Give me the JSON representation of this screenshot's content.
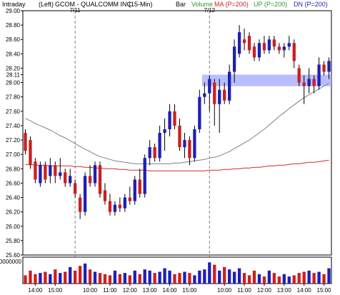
{
  "header": {
    "period": "Intraday",
    "position": "(Left)",
    "symbol": "GCOM - QUALCOMM INC",
    "interval": "(15-Min)",
    "bar_label": "Bar",
    "volume_label": "Volume",
    "ma_label": "MA (P=200)",
    "up_label": "UP (P=200)",
    "dn_label": "DN (P=200)"
  },
  "colors": {
    "up_candle": "#1f1fb4",
    "down_candle": "#cc1f1f",
    "ma_line": "#d42a2a",
    "band_line": "#808080",
    "resistance_zone": "#a0a8ff",
    "volume_label_color": "#2a9a2a",
    "up_label_color": "#2a9a2a",
    "dn_label_color": "#1f1fb4",
    "ma_label_color": "#cc1f1f",
    "day_divider": "#808080"
  },
  "volume_axis_label": "0000000",
  "chart_data": {
    "type": "candlestick",
    "ylim": [
      25.6,
      29.0
    ],
    "y_ticks": [
      "25.60",
      "25.80",
      "26.00",
      "26.20",
      "26.40",
      "26.60",
      "26.80",
      "27.00",
      "27.20",
      "27.40",
      "27.60",
      "27.80",
      "28.00",
      "28.11",
      "28.20",
      "28.40",
      "28.60",
      "28.80",
      "29.00"
    ],
    "x_tick_labels": [
      {
        "label": "14:00",
        "bar": 2
      },
      {
        "label": "15:00",
        "bar": 6
      },
      {
        "label": "10:00",
        "bar": 13
      },
      {
        "label": "11:00",
        "bar": 17
      },
      {
        "label": "12:00",
        "bar": 21
      },
      {
        "label": "13:00",
        "bar": 25
      },
      {
        "label": "14:00",
        "bar": 29
      },
      {
        "label": "15:00",
        "bar": 33
      },
      {
        "label": "10:00",
        "bar": 40
      },
      {
        "label": "11:00",
        "bar": 44
      },
      {
        "label": "12:00",
        "bar": 48
      },
      {
        "label": "13:00",
        "bar": 52
      },
      {
        "label": "14:00",
        "bar": 56
      },
      {
        "label": "15:00",
        "bar": 60
      }
    ],
    "date_markers": [
      {
        "label": "7/11",
        "at_bar": 10.5
      },
      {
        "label": "7/12",
        "at_bar": 37.5
      }
    ],
    "resistance_zone": [
      27.95,
      28.11
    ],
    "bars": [
      {
        "o": 27.3,
        "h": 27.35,
        "l": 27.0,
        "c": 27.05
      },
      {
        "o": 27.2,
        "h": 27.25,
        "l": 26.8,
        "c": 26.85
      },
      {
        "o": 26.9,
        "h": 26.95,
        "l": 26.6,
        "c": 26.65
      },
      {
        "o": 26.6,
        "h": 26.9,
        "l": 26.55,
        "c": 26.85
      },
      {
        "o": 26.85,
        "h": 26.9,
        "l": 26.6,
        "c": 26.65
      },
      {
        "o": 26.7,
        "h": 26.95,
        "l": 26.6,
        "c": 26.85
      },
      {
        "o": 26.85,
        "h": 26.9,
        "l": 26.6,
        "c": 26.7
      },
      {
        "o": 26.7,
        "h": 26.95,
        "l": 26.65,
        "c": 26.75
      },
      {
        "o": 26.75,
        "h": 26.8,
        "l": 26.55,
        "c": 26.6
      },
      {
        "o": 26.6,
        "h": 26.8,
        "l": 26.55,
        "c": 26.7
      },
      {
        "o": 26.6,
        "h": 26.65,
        "l": 26.4,
        "c": 26.45
      },
      {
        "o": 26.4,
        "h": 26.45,
        "l": 26.1,
        "c": 26.2
      },
      {
        "o": 26.2,
        "h": 26.75,
        "l": 26.15,
        "c": 26.7
      },
      {
        "o": 26.7,
        "h": 26.85,
        "l": 26.55,
        "c": 26.6
      },
      {
        "o": 26.6,
        "h": 26.9,
        "l": 26.55,
        "c": 26.85
      },
      {
        "o": 26.85,
        "h": 26.9,
        "l": 26.4,
        "c": 26.45
      },
      {
        "o": 26.5,
        "h": 26.6,
        "l": 26.3,
        "c": 26.35
      },
      {
        "o": 26.35,
        "h": 26.45,
        "l": 26.15,
        "c": 26.2
      },
      {
        "o": 26.2,
        "h": 26.35,
        "l": 26.15,
        "c": 26.3
      },
      {
        "o": 26.3,
        "h": 26.4,
        "l": 26.2,
        "c": 26.25
      },
      {
        "o": 26.25,
        "h": 26.45,
        "l": 26.2,
        "c": 26.4
      },
      {
        "o": 26.4,
        "h": 26.55,
        "l": 26.3,
        "c": 26.35
      },
      {
        "o": 26.35,
        "h": 26.7,
        "l": 26.3,
        "c": 26.65
      },
      {
        "o": 26.65,
        "h": 26.8,
        "l": 26.4,
        "c": 26.45
      },
      {
        "o": 26.45,
        "h": 27.0,
        "l": 26.4,
        "c": 26.95
      },
      {
        "o": 26.95,
        "h": 27.2,
        "l": 26.85,
        "c": 27.1
      },
      {
        "o": 27.1,
        "h": 27.15,
        "l": 26.9,
        "c": 26.95
      },
      {
        "o": 26.95,
        "h": 27.4,
        "l": 26.9,
        "c": 27.3
      },
      {
        "o": 27.3,
        "h": 27.5,
        "l": 27.05,
        "c": 27.35
      },
      {
        "o": 27.35,
        "h": 27.7,
        "l": 27.25,
        "c": 27.6
      },
      {
        "o": 27.6,
        "h": 27.7,
        "l": 27.35,
        "c": 27.4
      },
      {
        "o": 27.4,
        "h": 27.5,
        "l": 27.05,
        "c": 27.1
      },
      {
        "o": 27.1,
        "h": 27.3,
        "l": 26.95,
        "c": 27.2
      },
      {
        "o": 27.2,
        "h": 27.25,
        "l": 26.85,
        "c": 26.95
      },
      {
        "o": 26.95,
        "h": 27.4,
        "l": 26.9,
        "c": 27.35
      },
      {
        "o": 27.35,
        "h": 27.9,
        "l": 27.3,
        "c": 27.8
      },
      {
        "o": 27.8,
        "h": 28.0,
        "l": 27.7,
        "c": 27.85
      },
      {
        "o": 27.85,
        "h": 28.1,
        "l": 27.6,
        "c": 28.05
      },
      {
        "o": 28.0,
        "h": 28.05,
        "l": 27.4,
        "c": 27.7
      },
      {
        "o": 27.7,
        "h": 28.05,
        "l": 27.3,
        "c": 27.9
      },
      {
        "o": 27.9,
        "h": 28.0,
        "l": 27.7,
        "c": 27.75
      },
      {
        "o": 27.75,
        "h": 28.25,
        "l": 27.7,
        "c": 28.15
      },
      {
        "o": 28.15,
        "h": 28.6,
        "l": 28.0,
        "c": 28.5
      },
      {
        "o": 28.4,
        "h": 28.8,
        "l": 28.35,
        "c": 28.7
      },
      {
        "o": 28.6,
        "h": 28.75,
        "l": 28.45,
        "c": 28.55
      },
      {
        "o": 28.65,
        "h": 28.7,
        "l": 28.4,
        "c": 28.45
      },
      {
        "o": 28.5,
        "h": 28.55,
        "l": 28.3,
        "c": 28.35
      },
      {
        "o": 28.35,
        "h": 28.6,
        "l": 28.3,
        "c": 28.55
      },
      {
        "o": 28.55,
        "h": 28.65,
        "l": 28.4,
        "c": 28.45
      },
      {
        "o": 28.45,
        "h": 28.65,
        "l": 28.4,
        "c": 28.6
      },
      {
        "o": 28.6,
        "h": 28.65,
        "l": 28.45,
        "c": 28.5
      },
      {
        "o": 28.5,
        "h": 28.55,
        "l": 28.4,
        "c": 28.45
      },
      {
        "o": 28.45,
        "h": 28.55,
        "l": 28.35,
        "c": 28.5
      },
      {
        "o": 28.5,
        "h": 28.65,
        "l": 28.45,
        "c": 28.55
      },
      {
        "o": 28.55,
        "h": 28.6,
        "l": 28.2,
        "c": 28.3
      },
      {
        "o": 28.2,
        "h": 28.25,
        "l": 27.95,
        "c": 28.0
      },
      {
        "o": 28.0,
        "h": 28.1,
        "l": 27.7,
        "c": 27.95
      },
      {
        "o": 27.95,
        "h": 28.2,
        "l": 27.85,
        "c": 28.05
      },
      {
        "o": 28.05,
        "h": 28.1,
        "l": 27.85,
        "c": 27.95
      },
      {
        "o": 27.95,
        "h": 28.35,
        "l": 27.9,
        "c": 28.25
      },
      {
        "o": 28.25,
        "h": 28.3,
        "l": 28.1,
        "c": 28.15
      },
      {
        "o": 28.15,
        "h": 28.35,
        "l": 28.05,
        "c": 28.3
      }
    ],
    "volume": [
      0.35,
      0.55,
      0.4,
      0.45,
      0.5,
      0.4,
      0.6,
      0.45,
      0.5,
      0.7,
      0.55,
      0.75,
      0.85,
      0.6,
      0.5,
      0.45,
      0.4,
      0.35,
      0.55,
      0.4,
      0.45,
      0.35,
      0.55,
      0.4,
      0.6,
      0.55,
      0.45,
      0.5,
      0.65,
      0.55,
      0.4,
      0.45,
      0.5,
      0.45,
      0.35,
      0.55,
      0.6,
      0.9,
      0.8,
      0.55,
      0.7,
      0.6,
      0.5,
      0.65,
      0.45,
      0.35,
      0.55,
      0.4,
      0.3,
      0.55,
      0.45,
      0.3,
      0.4,
      0.3,
      0.35,
      0.45,
      0.5,
      0.55,
      0.45,
      0.5,
      0.4,
      0.65
    ],
    "ma_200": [
      26.86,
      26.86,
      26.85,
      26.85,
      26.85,
      26.84,
      26.84,
      26.84,
      26.84,
      26.84,
      26.83,
      26.83,
      26.82,
      26.82,
      26.81,
      26.81,
      26.8,
      26.8,
      26.8,
      26.79,
      26.79,
      26.78,
      26.78,
      26.78,
      26.78,
      26.77,
      26.77,
      26.77,
      26.77,
      26.77,
      26.77,
      26.77,
      26.77,
      26.77,
      26.77,
      26.77,
      26.77,
      26.78,
      26.78,
      26.78,
      26.79,
      26.79,
      26.8,
      26.8,
      26.81,
      26.81,
      26.82,
      26.82,
      26.83,
      26.84,
      26.84,
      26.85,
      26.85,
      26.86,
      26.87,
      26.87,
      26.88,
      26.89,
      26.89,
      26.9,
      26.91,
      26.92
    ],
    "up_200": [
      27.5,
      27.47,
      27.43,
      27.4,
      27.37,
      27.34,
      27.3,
      27.26,
      27.23,
      27.19,
      27.15,
      27.11,
      27.07,
      27.04,
      27.0,
      26.97,
      26.95,
      26.93,
      26.91,
      26.9,
      26.89,
      26.88,
      26.87,
      26.87,
      26.87,
      26.87,
      26.87,
      26.87,
      26.87,
      26.87,
      26.88,
      26.88,
      26.89,
      26.9,
      26.91,
      26.92,
      26.93,
      26.95,
      26.96,
      26.98,
      27.01,
      27.04,
      27.08,
      27.12,
      27.16,
      27.2,
      27.25,
      27.3,
      27.35,
      27.41,
      27.47,
      27.53,
      27.58,
      27.64,
      27.69,
      27.74,
      27.79,
      27.83,
      27.87,
      27.91,
      27.95,
      27.99
    ]
  }
}
